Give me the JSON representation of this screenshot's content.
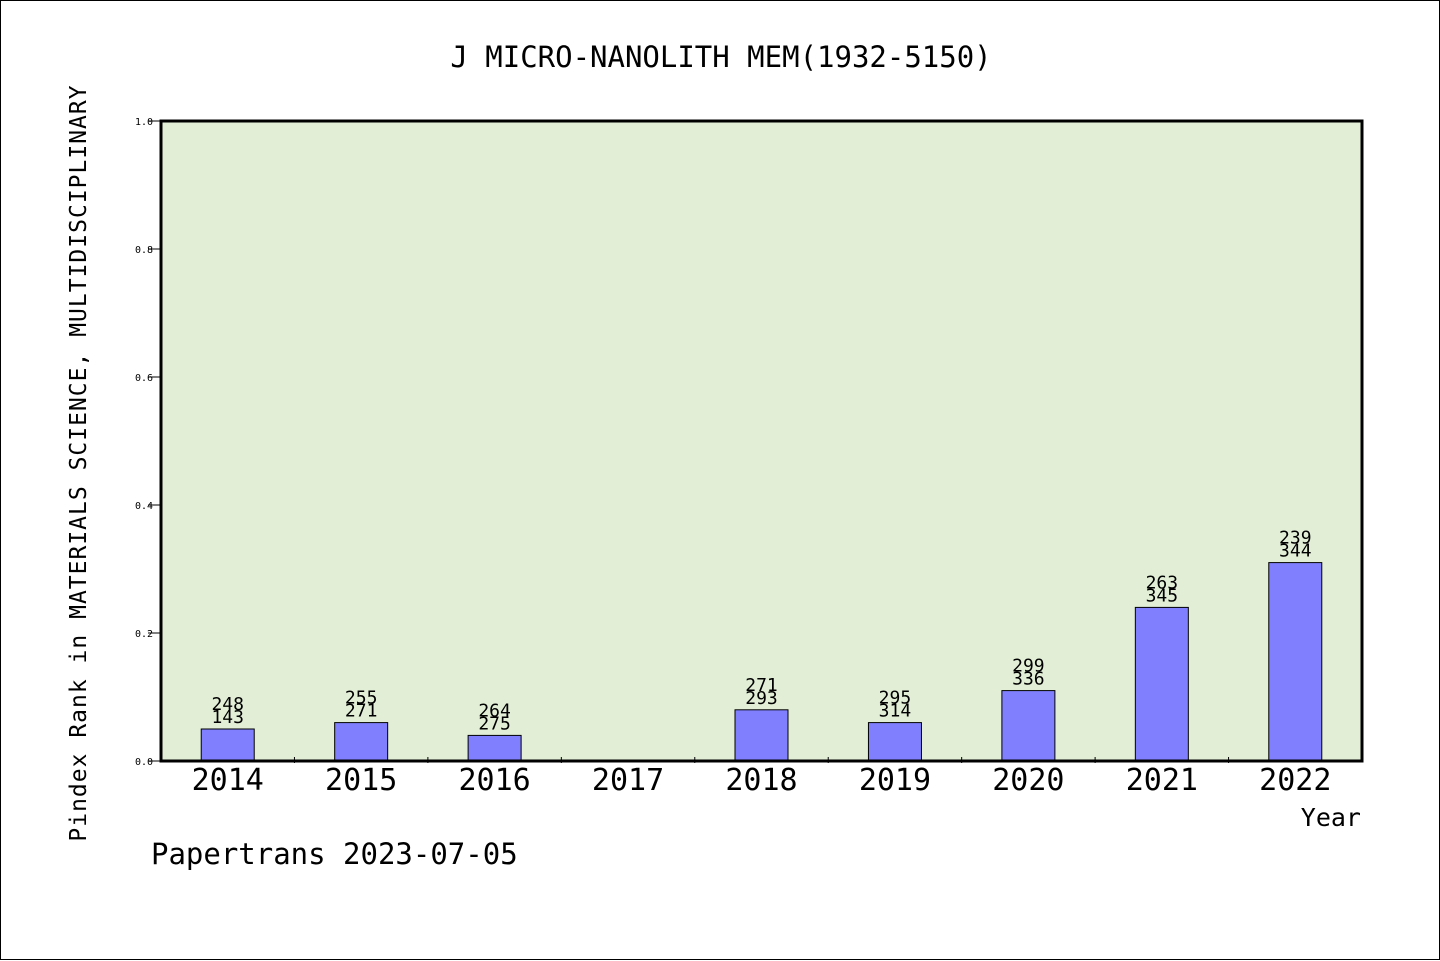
{
  "chart_data": {
    "type": "bar",
    "title": "J MICRO-NANOLITH MEM(1932-5150)",
    "xlabel": "Year",
    "ylabel": "Pindex Rank in MATERIALS SCIENCE, MULTIDISCIPLINARY",
    "ylim": [
      0,
      1.0
    ],
    "yticks": [
      "0.0",
      "0.2",
      "0.4",
      "0.6",
      "0.8",
      "1.0"
    ],
    "grid": false,
    "categories": [
      "2014",
      "2015",
      "2016",
      "2017",
      "2018",
      "2019",
      "2020",
      "2021",
      "2022"
    ],
    "values": [
      0.05,
      0.06,
      0.04,
      null,
      0.08,
      0.06,
      0.11,
      0.24,
      0.31
    ],
    "label_top": [
      "248",
      "255",
      "264",
      "",
      "271",
      "295",
      "299",
      "263",
      "239"
    ],
    "label_bottom": [
      "143",
      "271",
      "275",
      "",
      "293",
      "314",
      "336",
      "345",
      "344"
    ],
    "colors": {
      "plot_bg": "#e2efd6",
      "bar": "#8080ff",
      "axis": "#000000"
    }
  },
  "footer": {
    "credit": "Papertrans 2023-07-05"
  }
}
